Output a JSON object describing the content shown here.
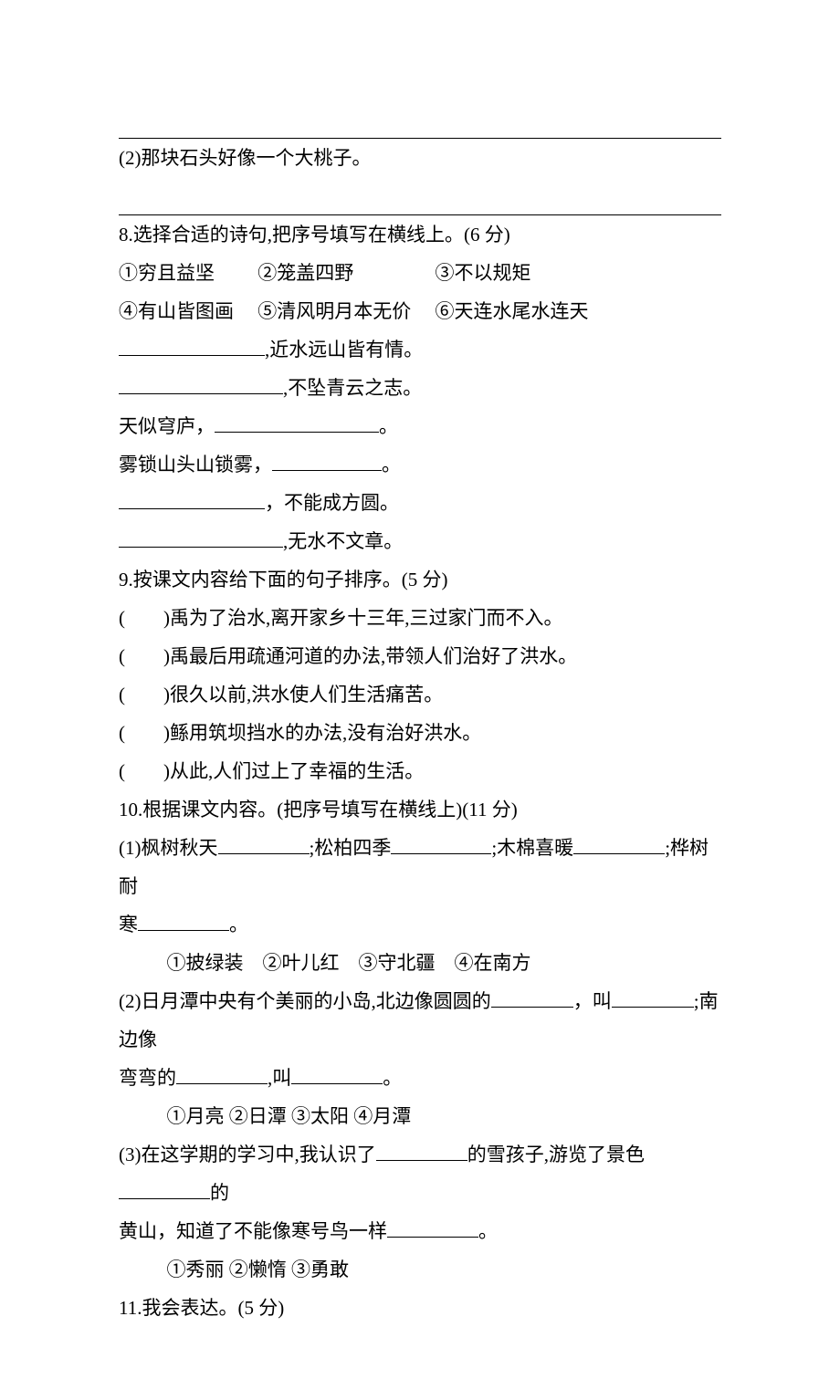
{
  "q7": {
    "item2": "(2)那块石头好像一个大桃子。"
  },
  "q8": {
    "title": "8.选择合适的诗句,把序号填写在横线上。(6 分)",
    "opts_line1": {
      "a": "①穷且益坚",
      "b": "②笼盖四野",
      "c": "③不以规矩"
    },
    "opts_line2": {
      "a": "④有山皆图画",
      "b": "⑤清风明月本无价",
      "c": "⑥天连水尾水连天"
    },
    "l1_after": ",近水远山皆有情。",
    "l2_after": ",不坠青云之志。",
    "l3_before": "天似穹庐，",
    "l3_after": "。",
    "l4_before": "雾锁山头山锁雾，",
    "l4_after": "。",
    "l5_after": "，不能成方圆。",
    "l6_after": ",无水不文章。"
  },
  "q9": {
    "title": "9.按课文内容给下面的句子排序。(5 分)",
    "s1": "禹为了治水,离开家乡十三年,三过家门而不入。",
    "s2": "禹最后用疏通河道的办法,带领人们治好了洪水。",
    "s3": "很久以前,洪水使人们生活痛苦。",
    "s4": "鲧用筑坝挡水的办法,没有治好洪水。",
    "s5": "从此,人们过上了幸福的生活。",
    "paren_open": "(",
    "paren_close": ")"
  },
  "q10": {
    "title": "10.根据课文内容。(把序号填写在横线上)(11 分)",
    "p1_a": "(1)枫树秋天",
    "p1_b": ";松柏四季",
    "p1_c": ";木棉喜暖",
    "p1_d": ";桦树耐",
    "p1_e_prefix": "寒",
    "p1_end": "。",
    "p1_opts": "①披绿装　②叶儿红　③守北疆　④在南方",
    "p2_a": "(2)日月潭中央有个美丽的小岛,北边像圆圆的",
    "p2_b": "，叫",
    "p2_c": ";南边像",
    "p2_d_prefix": "弯弯的",
    "p2_e": ",叫",
    "p2_end": "。",
    "p2_opts": "①月亮 ②日潭 ③太阳 ④月潭",
    "p3_a": "(3)在这学期的学习中,我认识了",
    "p3_b": "的雪孩子,游览了景色",
    "p3_c": "的",
    "p3_d_prefix": "黄山，知道了不能像寒号鸟一样",
    "p3_end": "。",
    "p3_opts": "①秀丽 ②懒惰 ③勇敢"
  },
  "q11": {
    "title": "11.我会表达。(5 分)"
  }
}
